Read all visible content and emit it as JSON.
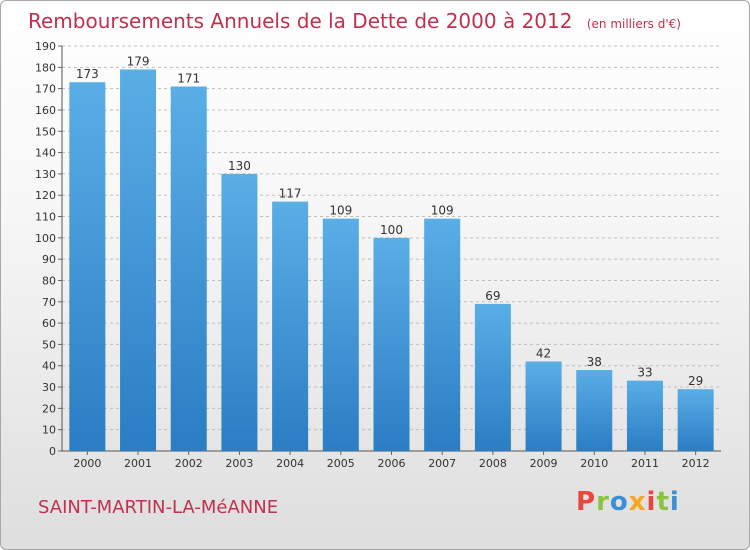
{
  "header": {
    "title": "Remboursements Annuels de la Dette de 2000 à 2012",
    "subtitle": "(en milliers d'€)"
  },
  "footer": {
    "commune": "SAINT-MARTIN-LA-MéANNE",
    "brand": "Proxiti",
    "brand_colors": [
      "#e8483c",
      "#8bc540",
      "#3a8fd6",
      "#f7a823",
      "#e8483c",
      "#8bc540",
      "#3a8fd6"
    ]
  },
  "colors": {
    "bar_dark": "#2b7dc4",
    "bar_light": "#5aaee6",
    "grid": "#bdbdbd",
    "accent": "#c0304f"
  },
  "chart_data": {
    "type": "bar",
    "categories": [
      "2000",
      "2001",
      "2002",
      "2003",
      "2004",
      "2005",
      "2006",
      "2007",
      "2008",
      "2009",
      "2010",
      "2011",
      "2012"
    ],
    "values": [
      173,
      179,
      171,
      130,
      117,
      109,
      100,
      109,
      69,
      42,
      38,
      33,
      29
    ],
    "ylim": [
      0,
      190
    ],
    "ytick_step": 10,
    "grid": "horizontal-dashed",
    "legend": "none"
  }
}
